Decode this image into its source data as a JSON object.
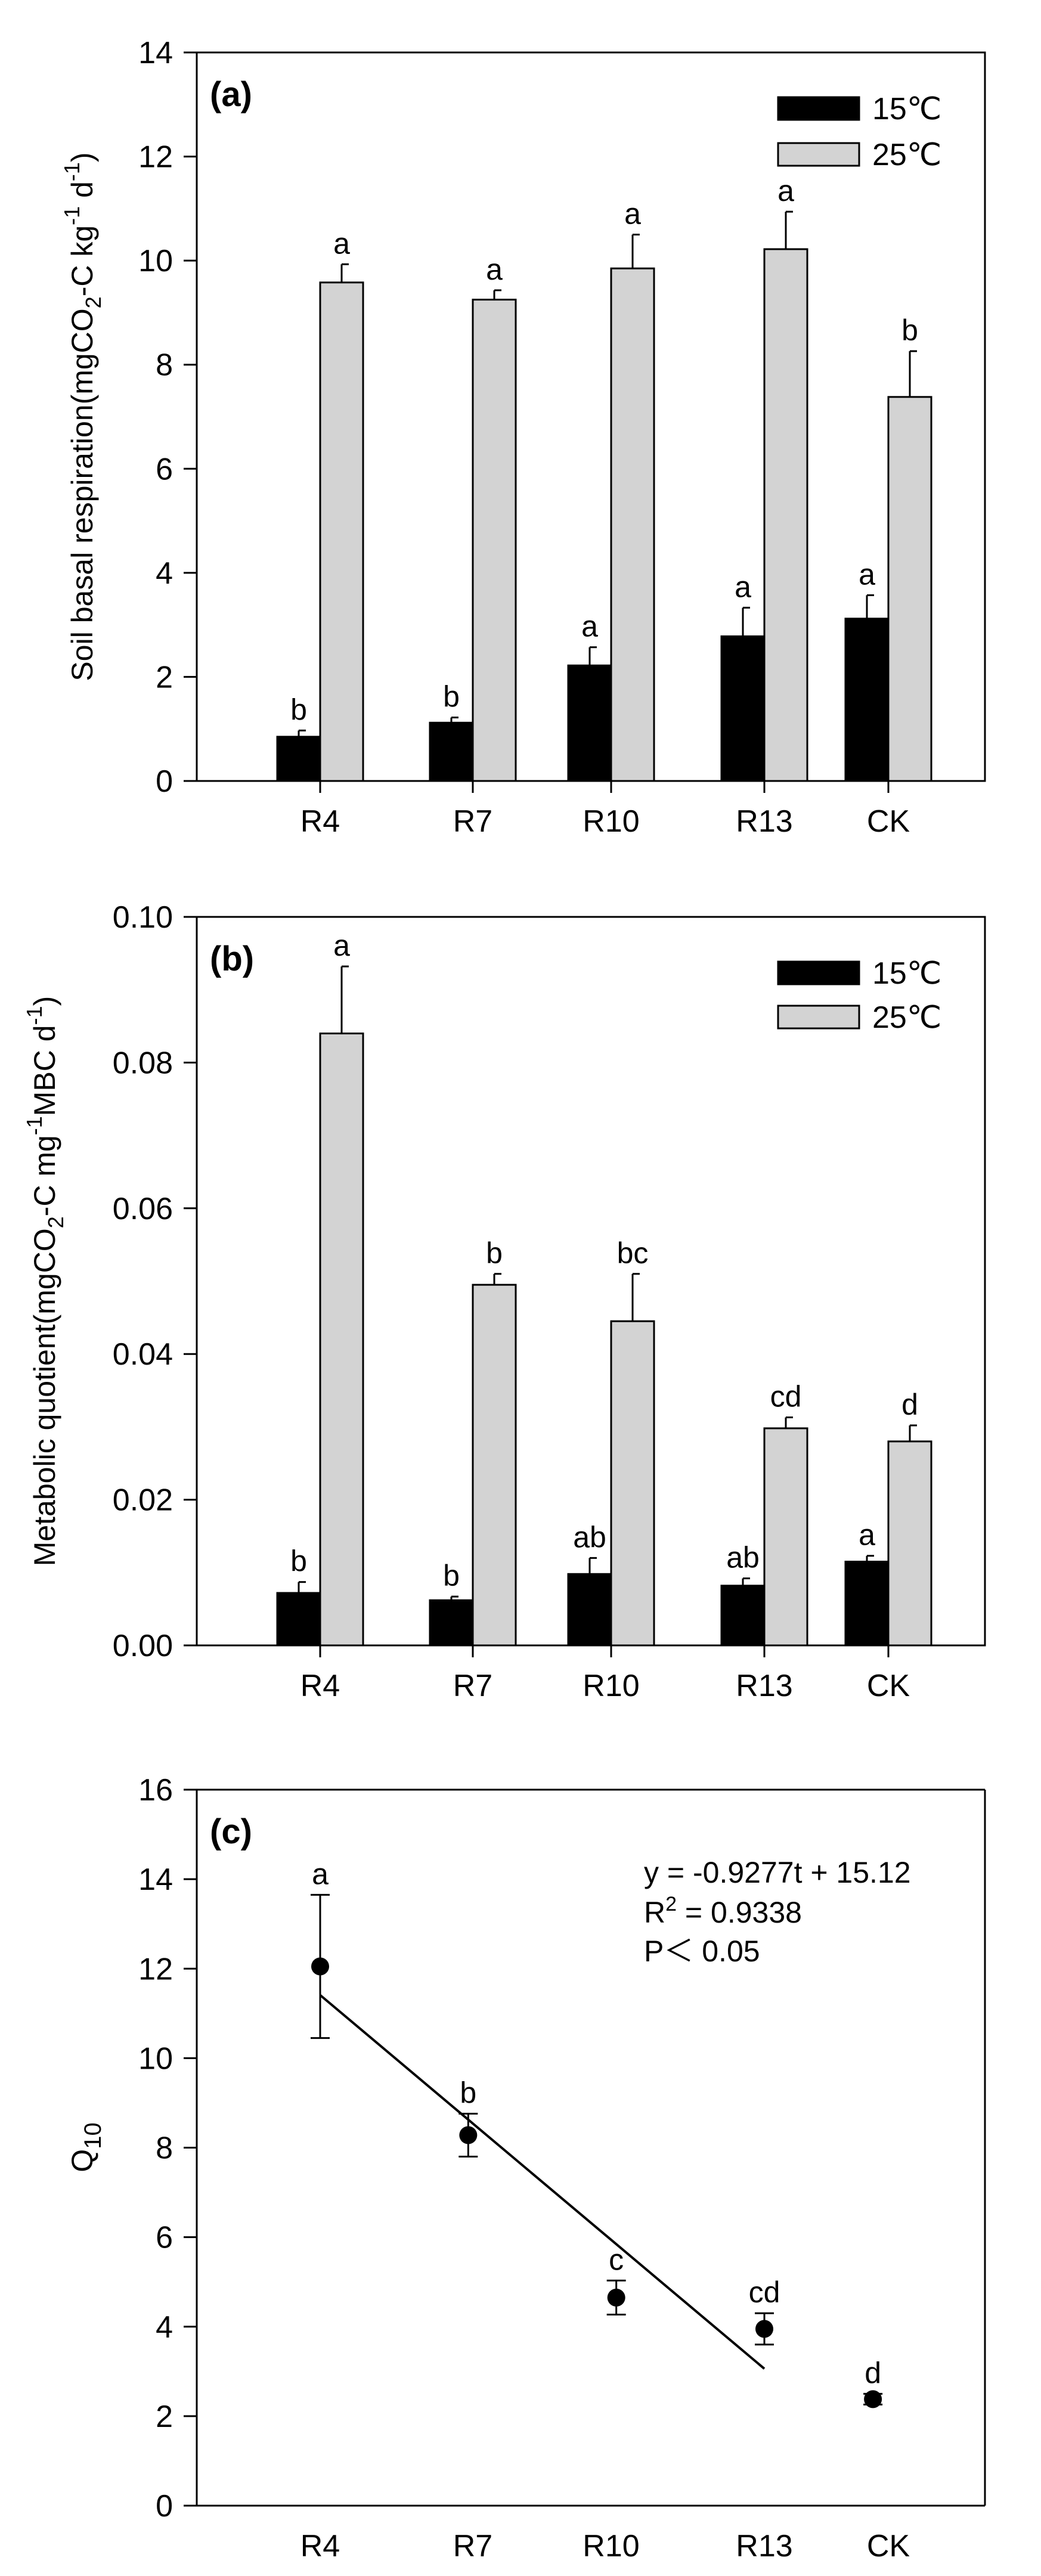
{
  "colors": {
    "bar_15": "#000000",
    "bar_25": "#d3d3d3",
    "point": "#000000"
  },
  "chart_data": [
    {
      "id": "a",
      "type": "bar",
      "panel_label": "(a)",
      "ylabel": {
        "main": "Soil basal respiration(mgCO",
        "sub1": "2",
        "mid1": "-C kg",
        "sup1": "-1",
        "mid2": " d",
        "sup2": "-1",
        "end": ")"
      },
      "ylim": [
        0,
        14
      ],
      "yticks": [
        0,
        2,
        4,
        6,
        8,
        10,
        12,
        14
      ],
      "ytick_labels": [
        "0",
        "2",
        "4",
        "6",
        "8",
        "10",
        "12",
        "14"
      ],
      "categories": [
        "R4",
        "R7",
        "R10",
        "R13",
        "CK"
      ],
      "legend_position": "top-right",
      "series": [
        {
          "name": "15℃",
          "values": [
            0.85,
            1.12,
            2.22,
            2.78,
            3.12
          ],
          "errors": [
            0.12,
            0.1,
            0.35,
            0.55,
            0.45
          ],
          "letters": [
            "b",
            "b",
            "a",
            "a",
            "a"
          ]
        },
        {
          "name": "25℃",
          "values": [
            9.58,
            9.25,
            9.85,
            10.22,
            7.38
          ],
          "errors": [
            0.35,
            0.18,
            0.65,
            0.72,
            0.88
          ],
          "letters": [
            "a",
            "a",
            "a",
            "a",
            "b"
          ]
        }
      ]
    },
    {
      "id": "b",
      "type": "bar",
      "panel_label": "(b)",
      "ylabel": {
        "main": "Metabolic quotient(mgCO",
        "sub1": "2",
        "mid1": "-C mg",
        "sup1": "-1",
        "mid2": "MBC d",
        "sup2": "-1",
        "end": ")"
      },
      "ylim": [
        0,
        0.1
      ],
      "yticks": [
        0,
        0.02,
        0.04,
        0.06,
        0.08,
        0.1
      ],
      "ytick_labels": [
        "0.00",
        "0.02",
        "0.04",
        "0.06",
        "0.08",
        "0.10"
      ],
      "categories": [
        "R4",
        "R7",
        "R10",
        "R13",
        "CK"
      ],
      "legend_position": "top-right",
      "series": [
        {
          "name": "15℃",
          "values": [
            0.0072,
            0.0062,
            0.0098,
            0.0082,
            0.0115
          ],
          "errors": [
            0.0015,
            0.0005,
            0.0022,
            0.001,
            0.0008
          ],
          "letters": [
            "b",
            "b",
            "ab",
            "ab",
            "a"
          ]
        },
        {
          "name": "25℃",
          "values": [
            0.084,
            0.0495,
            0.0445,
            0.0298,
            0.028
          ],
          "errors": [
            0.0092,
            0.0015,
            0.0065,
            0.0015,
            0.0022
          ],
          "letters": [
            "a",
            "b",
            "bc",
            "cd",
            "d"
          ]
        }
      ]
    },
    {
      "id": "c",
      "type": "scatter",
      "panel_label": "(c)",
      "ylabel": {
        "main": "Q",
        "sub1": "10"
      },
      "ylim": [
        0,
        16
      ],
      "yticks": [
        0,
        2,
        4,
        6,
        8,
        10,
        12,
        14,
        16
      ],
      "ytick_labels": [
        "0",
        "2",
        "4",
        "6",
        "8",
        "10",
        "12",
        "14",
        "16"
      ],
      "categories": [
        "R4",
        "R7",
        "R10",
        "R13",
        "CK"
      ],
      "x": [
        4,
        7,
        10,
        13,
        15.2
      ],
      "values": [
        12.05,
        8.28,
        4.65,
        3.95,
        2.38
      ],
      "errors": [
        1.6,
        0.48,
        0.38,
        0.35,
        0.12
      ],
      "letters": [
        "a",
        "b",
        "c",
        "cd",
        "d"
      ],
      "fit": {
        "slope": -0.9277,
        "intercept": 15.12,
        "x_range": [
          4,
          13
        ]
      },
      "annotation": {
        "equation": "y = -0.9277t + 15.12",
        "r2_prefix": "R",
        "r2_sup": "2",
        "r2_value": " = 0.9338",
        "p_value": "P＜ 0.05"
      }
    }
  ]
}
